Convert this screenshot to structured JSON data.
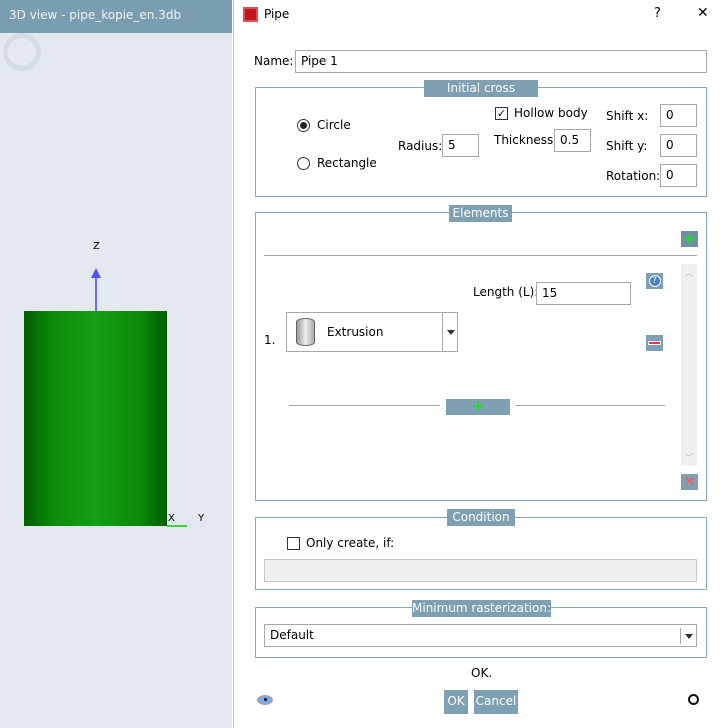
{
  "view3d": {
    "title": "3D view - pipe_kopie_en.3db",
    "axes": {
      "z": "Z",
      "x": "X",
      "y": "Y"
    },
    "body_color": "#138a13"
  },
  "dialog": {
    "title": "Pipe",
    "help": "?",
    "close": "✕",
    "name_label": "Name:",
    "name_value": "Pipe 1",
    "cross_section": {
      "legend": "Initial cross section",
      "shape_options": [
        "Circle",
        "Rectangle"
      ],
      "selected_shape": "Circle",
      "radius_label": "Radius:",
      "radius": "5",
      "hollow_label": "Hollow body",
      "hollow_checked": true,
      "thickness_label": "Thickness:",
      "thickness": "0.5",
      "shift_x_label": "Shift x:",
      "shift_x": "0",
      "shift_y_label": "Shift y:",
      "shift_y": "0",
      "rotation_label": "Rotation:",
      "rotation": "0"
    },
    "elements": {
      "legend": "Elements",
      "items": [
        {
          "index": "1.",
          "type": "Extrusion",
          "length_label": "Length (L):",
          "length": "15"
        }
      ]
    },
    "condition": {
      "legend": "Condition",
      "only_create_label": "Only create, if:",
      "checked": false,
      "expression": ""
    },
    "rasterization": {
      "legend": "Minimum rasterization:",
      "value": "Default"
    },
    "status": "OK.",
    "ok_label": "OK",
    "cancel_label": "Cancel"
  },
  "colors": {
    "accent": "#7f9fb3",
    "title_bar": "#7b9db2"
  }
}
